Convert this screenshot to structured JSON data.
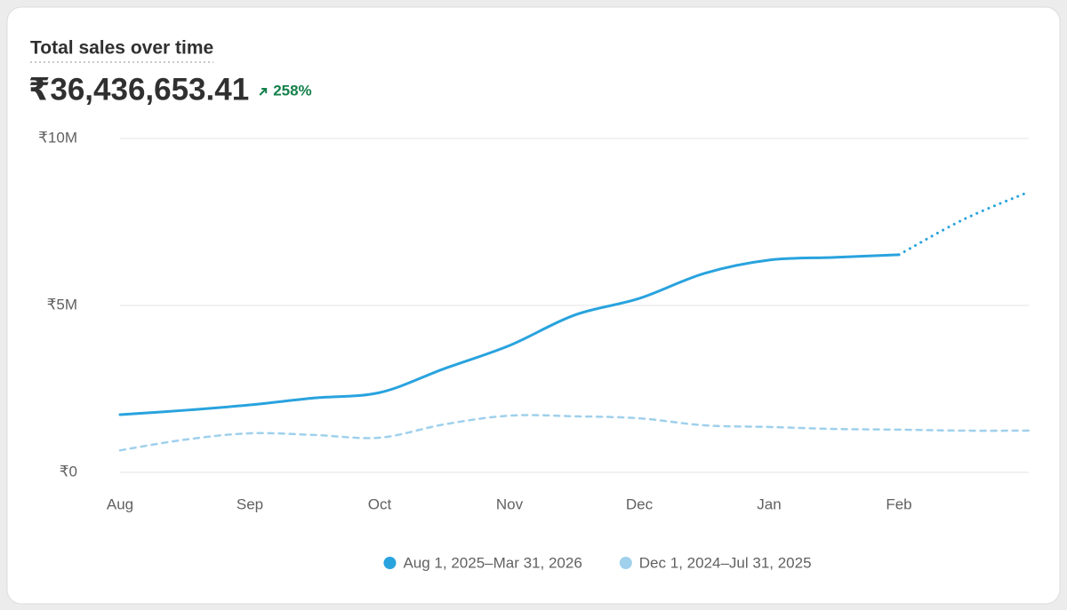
{
  "chart_data": {
    "type": "line",
    "title": "Total sales over time",
    "total": "₹36,436,653.41",
    "change": "258%",
    "categories": [
      "Aug",
      null,
      "Sep",
      null,
      "Oct",
      null,
      "Nov",
      null,
      "Dec",
      null,
      "Jan",
      null,
      "Feb",
      null,
      null
    ],
    "series": [
      {
        "name": "Aug 1, 2025–Mar 31, 2026",
        "color": "#29a3de",
        "projection_start": 12,
        "values": [
          1730000,
          1860000,
          2020000,
          2230000,
          2390000,
          3110000,
          3800000,
          4710000,
          5210000,
          5960000,
          6360000,
          6440000,
          6520000,
          7580000,
          8400000
        ]
      },
      {
        "name": "Dec 1, 2024–Jul 31, 2025",
        "color": "#9fd0ec",
        "dashed": true,
        "values": [
          660000,
          980000,
          1170000,
          1120000,
          1040000,
          1440000,
          1700000,
          1680000,
          1620000,
          1410000,
          1360000,
          1300000,
          1280000,
          1250000,
          1250000
        ]
      }
    ],
    "ylim": [
      0,
      10000000
    ],
    "yticks": [
      {
        "value": 0,
        "label": "₹0"
      },
      {
        "value": 5000000,
        "label": "₹5M"
      },
      {
        "value": 10000000,
        "label": "₹10M"
      }
    ],
    "grid": true
  }
}
